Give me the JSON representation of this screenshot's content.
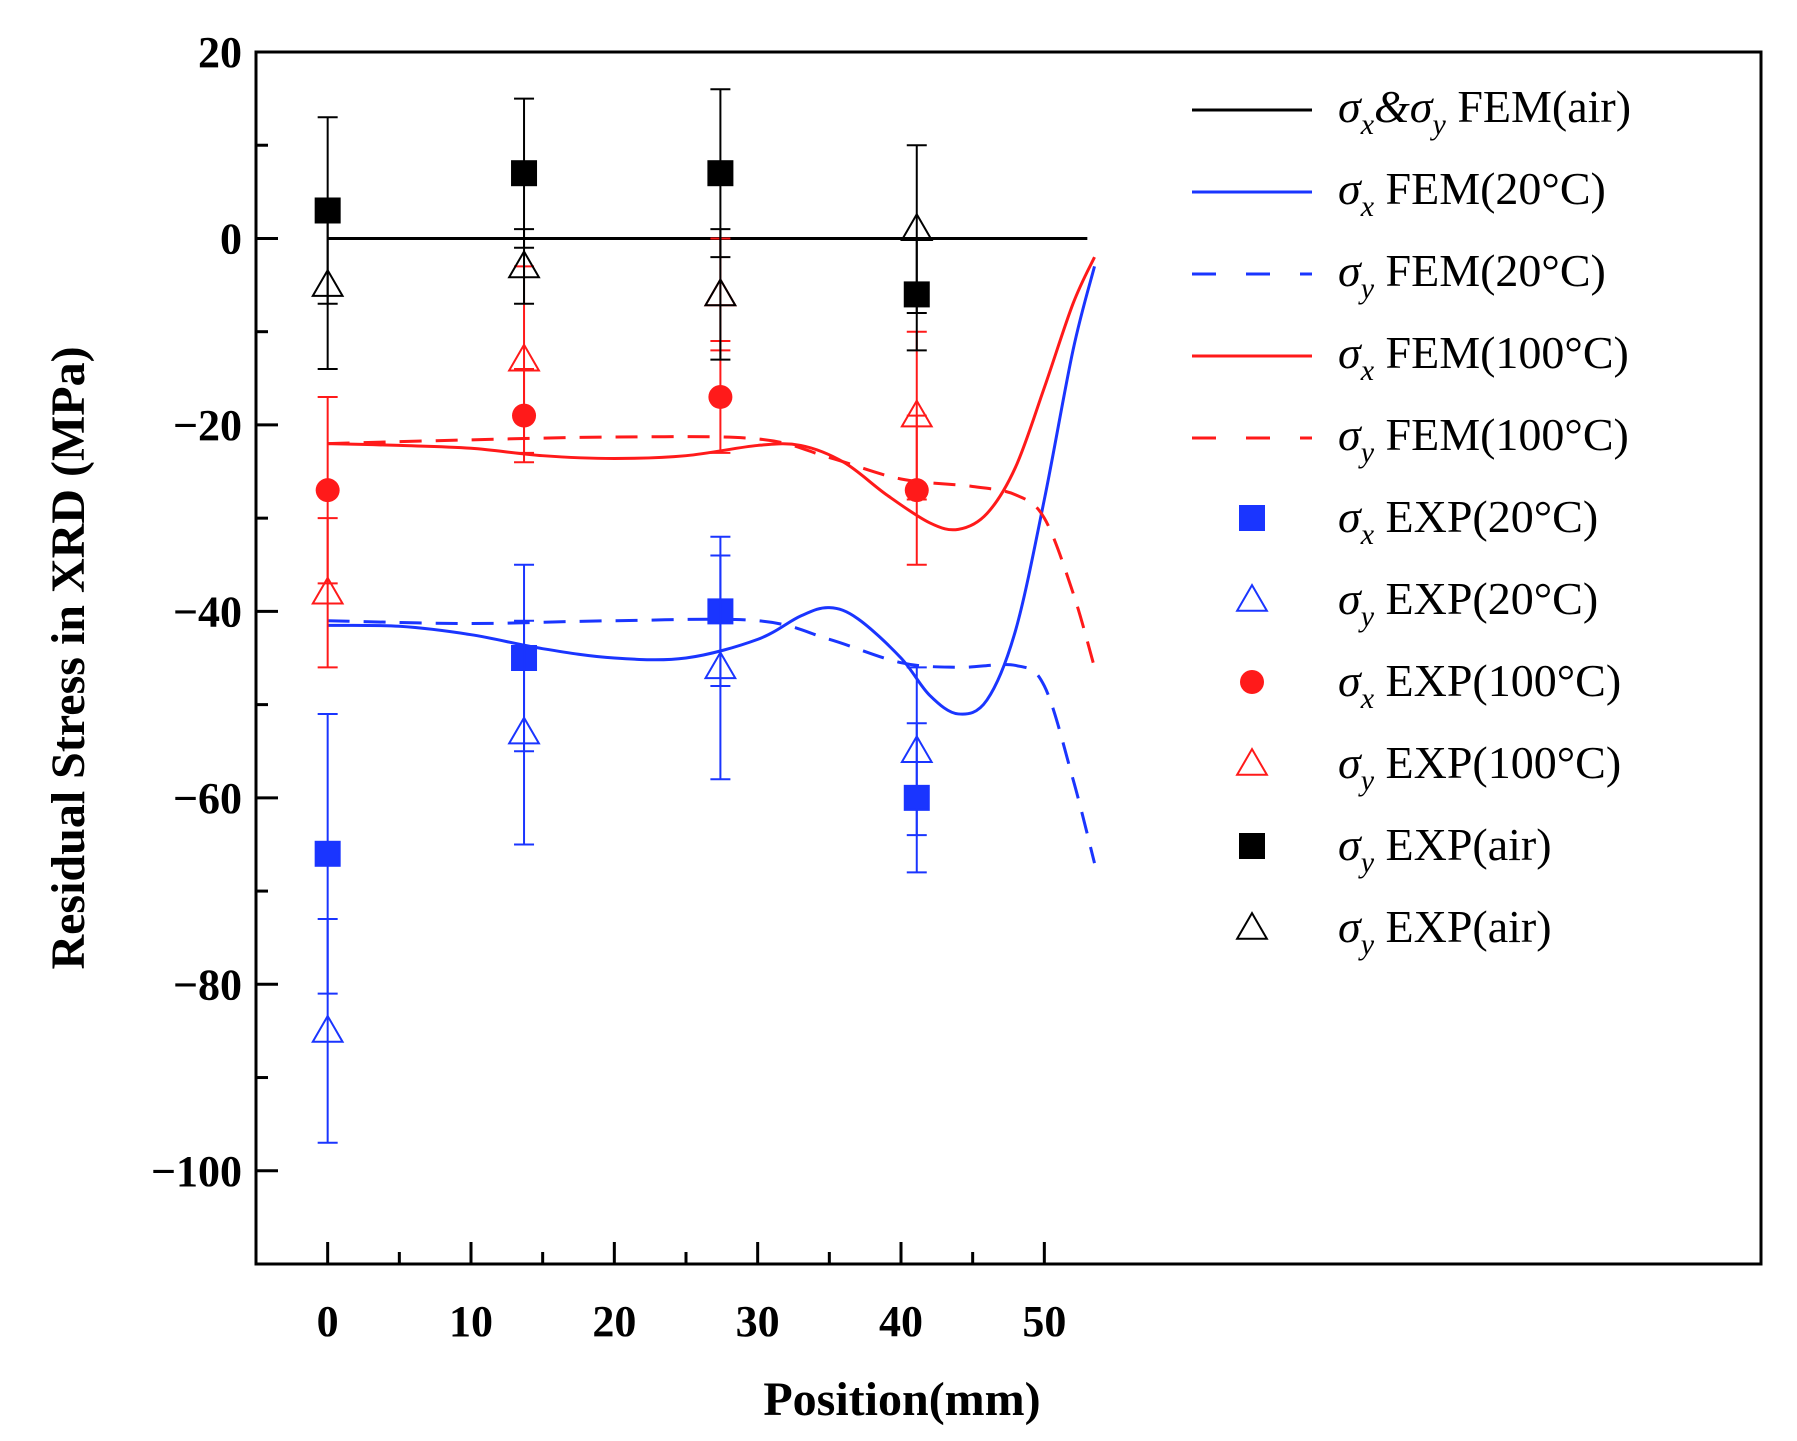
{
  "chart_data": {
    "type": "scatter",
    "title": "",
    "xlabel": "Position(mm)",
    "ylabel": "Residual Stress in XRD (MPa)",
    "xlim": [
      -5,
      100
    ],
    "ylim": [
      -110,
      20
    ],
    "xticks": [
      0,
      10,
      20,
      30,
      40,
      50
    ],
    "xtick_labels": [
      "0",
      "10",
      "20",
      "30",
      "40",
      "50"
    ],
    "yticks": [
      20,
      0,
      -20,
      -40,
      -60,
      -80,
      -100
    ],
    "ytick_labels": [
      "20",
      "0",
      "−20",
      "−40",
      "−60",
      "−80",
      "−100"
    ],
    "legend_position": "top-right",
    "series": [
      {
        "name": "σx&σy FEM(air)",
        "sym": "σ",
        "sub": "x",
        "sym2": "&σ",
        "sub2": "y",
        "text": "FEM(air)",
        "kind": "line",
        "style": "solid",
        "color": "#000000",
        "x": [
          0,
          53
        ],
        "y": [
          0,
          0
        ]
      },
      {
        "name": "σx FEM(20°C)",
        "sym": "σ",
        "sub": "x",
        "text": "FEM(20°C)",
        "kind": "line",
        "style": "solid",
        "color": "#1a35ff",
        "x": [
          0,
          5,
          10,
          15,
          20,
          25,
          30,
          33,
          35,
          37,
          40,
          42,
          44,
          46,
          48,
          50,
          52,
          53.5
        ],
        "y": [
          -41.5,
          -41.6,
          -42.5,
          -44,
          -45,
          -45,
          -43,
          -40.5,
          -39.6,
          -40.8,
          -45,
          -49,
          -51,
          -49.5,
          -42,
          -28,
          -12,
          -3
        ]
      },
      {
        "name": "σy FEM(20°C)",
        "sym": "σ",
        "sub": "y",
        "text": "FEM(20°C)",
        "kind": "line",
        "style": "dashed",
        "color": "#1a35ff",
        "x": [
          0,
          10,
          20,
          30,
          35,
          40,
          44,
          48,
          50,
          52,
          53.5
        ],
        "y": [
          -41,
          -41.3,
          -41,
          -41,
          -43,
          -45.5,
          -46,
          -45.8,
          -48,
          -58,
          -67
        ]
      },
      {
        "name": "σx FEM(100°C)",
        "sym": "σ",
        "sub": "x",
        "text": "FEM(100°C)",
        "kind": "line",
        "style": "solid",
        "color": "#ff1a1a",
        "x": [
          0,
          5,
          10,
          15,
          20,
          25,
          30,
          33,
          36,
          39,
          42,
          44,
          46,
          48,
          50,
          52,
          53.5
        ],
        "y": [
          -22,
          -22.2,
          -22.5,
          -23.3,
          -23.6,
          -23.3,
          -22.2,
          -22.2,
          -24,
          -27.5,
          -30.5,
          -31.2,
          -29.5,
          -24.5,
          -16,
          -7,
          -2
        ]
      },
      {
        "name": "σy FEM(100°C)",
        "sym": "σ",
        "sub": "y",
        "text": "FEM(100°C)",
        "kind": "line",
        "style": "dashed",
        "color": "#ff1a1a",
        "x": [
          0,
          10,
          20,
          30,
          35,
          40,
          45,
          48,
          50,
          52,
          53.5
        ],
        "y": [
          -22,
          -21.6,
          -21.3,
          -21.5,
          -23.5,
          -25.8,
          -26.6,
          -27.5,
          -30,
          -38,
          -46
        ]
      },
      {
        "name": "σx EXP(20°C)",
        "sym": "σ",
        "sub": "x",
        "text": "EXP(20°C)",
        "kind": "marker",
        "marker": "square",
        "filled": true,
        "color": "#1a35ff",
        "x": [
          0,
          13.7,
          27.4,
          41.1
        ],
        "y": [
          -66,
          -45,
          -40,
          -60
        ],
        "err": [
          15,
          10,
          8,
          8
        ]
      },
      {
        "name": "σy EXP(20°C)",
        "sym": "σ",
        "sub": "y",
        "text": "EXP(20°C)",
        "kind": "marker",
        "marker": "triangle",
        "filled": false,
        "color": "#1a35ff",
        "x": [
          0,
          13.7,
          27.4,
          41.1
        ],
        "y": [
          -85,
          -53,
          -46,
          -55
        ],
        "err": [
          12,
          12,
          12,
          9
        ]
      },
      {
        "name": "σx EXP(100°C)",
        "sym": "σ",
        "sub": "x",
        "text": "EXP(100°C)",
        "kind": "marker",
        "marker": "circle",
        "filled": true,
        "color": "#ff1a1a",
        "x": [
          0,
          13.7,
          27.4,
          41.1
        ],
        "y": [
          -27,
          -19,
          -17,
          -27
        ],
        "err": [
          10,
          5,
          6,
          8
        ]
      },
      {
        "name": "σy EXP(100°C)",
        "sym": "σ",
        "sub": "y",
        "text": "EXP(100°C)",
        "kind": "marker",
        "marker": "triangle",
        "filled": false,
        "color": "#ff1a1a",
        "x": [
          0,
          13.7,
          27.4,
          41.1
        ],
        "y": [
          -38,
          -13,
          -6,
          -19
        ],
        "err": [
          8,
          10,
          6,
          9
        ]
      },
      {
        "name": "σy EXP(air)",
        "sym": "σ",
        "sub": "y",
        "text": "EXP(air)",
        "kind": "marker",
        "marker": "square",
        "filled": true,
        "color": "#000000",
        "x": [
          0,
          13.7,
          27.4,
          41.1
        ],
        "y": [
          3,
          7,
          7,
          -6
        ],
        "err": [
          10,
          8,
          9,
          6
        ]
      },
      {
        "name": "σy EXP(air)",
        "sym": "σ",
        "sub": "y",
        "text": "EXP(air)",
        "kind": "marker",
        "marker": "triangle",
        "filled": false,
        "color": "#000000",
        "x": [
          0,
          13.7,
          27.4,
          41.1
        ],
        "y": [
          -5,
          -3,
          -6,
          1
        ],
        "err": [
          9,
          4,
          7,
          9
        ]
      }
    ]
  }
}
